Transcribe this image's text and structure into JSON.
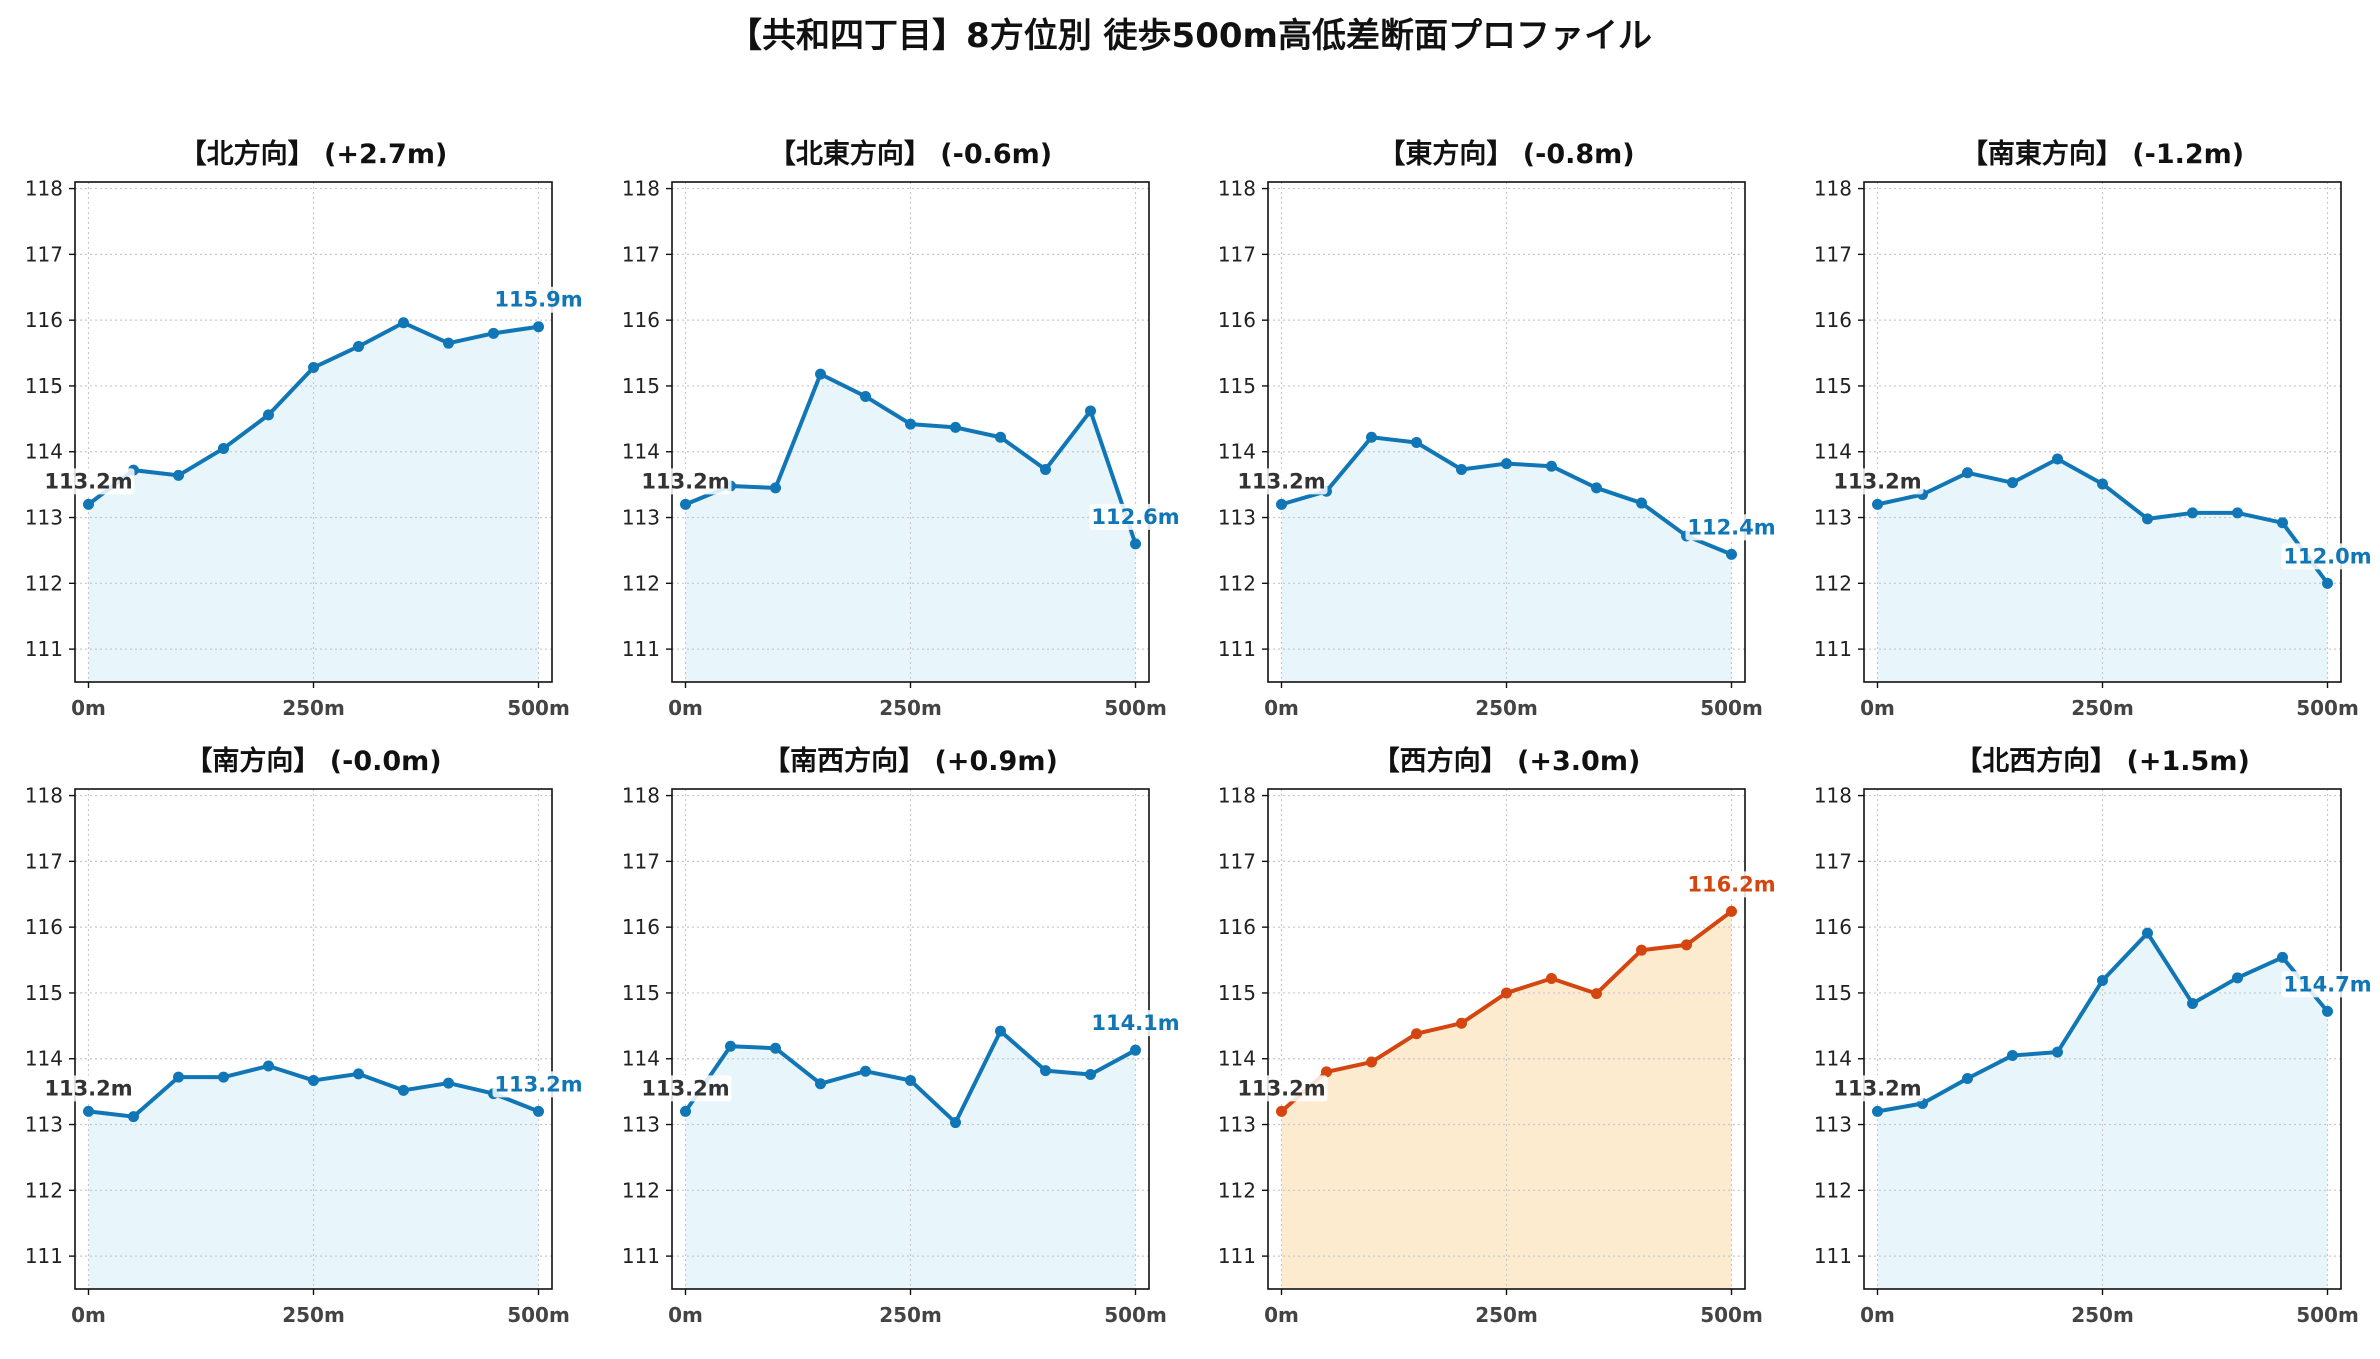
{
  "title": "【共和四丁目】8方位別 徒歩500m高低差断面プロファイル",
  "colors": {
    "normal_line": "#1176b5",
    "normal_fill": "#e8f6fb",
    "highlight_line": "#d4450f",
    "highlight_fill": "#fdebcf",
    "start_label": "#333333"
  },
  "chart_data": [
    {
      "type": "line",
      "title": "【北方向】 (+2.7m)",
      "highlight": false,
      "x": [
        0,
        50,
        100,
        150,
        200,
        250,
        300,
        350,
        400,
        450,
        500
      ],
      "y": [
        113.2,
        113.72,
        113.64,
        114.05,
        114.56,
        115.28,
        115.6,
        115.96,
        115.65,
        115.8,
        115.9
      ],
      "start_label": "113.2m",
      "end_label": "115.9m",
      "xticks": [
        "0m",
        "250m",
        "500m"
      ],
      "yticks": [
        "111",
        "112",
        "113",
        "114",
        "115",
        "116",
        "117",
        "118"
      ],
      "ylim": [
        110.5,
        118.1
      ],
      "grid": true
    },
    {
      "type": "line",
      "title": "【北東方向】 (-0.6m)",
      "highlight": false,
      "x": [
        0,
        50,
        100,
        150,
        200,
        250,
        300,
        350,
        400,
        450,
        500
      ],
      "y": [
        113.2,
        113.48,
        113.45,
        115.18,
        114.84,
        114.42,
        114.37,
        114.22,
        113.73,
        114.62,
        112.6
      ],
      "start_label": "113.2m",
      "end_label": "112.6m",
      "xticks": [
        "0m",
        "250m",
        "500m"
      ],
      "yticks": [
        "111",
        "112",
        "113",
        "114",
        "115",
        "116",
        "117",
        "118"
      ],
      "ylim": [
        110.5,
        118.1
      ],
      "grid": true
    },
    {
      "type": "line",
      "title": "【東方向】 (-0.8m)",
      "highlight": false,
      "x": [
        0,
        50,
        100,
        150,
        200,
        250,
        300,
        350,
        400,
        450,
        500
      ],
      "y": [
        113.2,
        113.4,
        114.22,
        114.14,
        113.73,
        113.82,
        113.78,
        113.45,
        113.22,
        112.72,
        112.44
      ],
      "start_label": "113.2m",
      "end_label": "112.4m",
      "xticks": [
        "0m",
        "250m",
        "500m"
      ],
      "yticks": [
        "111",
        "112",
        "113",
        "114",
        "115",
        "116",
        "117",
        "118"
      ],
      "ylim": [
        110.5,
        118.1
      ],
      "grid": true
    },
    {
      "type": "line",
      "title": "【南東方向】 (-1.2m)",
      "highlight": false,
      "x": [
        0,
        50,
        100,
        150,
        200,
        250,
        300,
        350,
        400,
        450,
        500
      ],
      "y": [
        113.2,
        113.35,
        113.68,
        113.53,
        113.89,
        113.51,
        112.98,
        113.07,
        113.07,
        112.92,
        112.0
      ],
      "start_label": "113.2m",
      "end_label": "112.0m",
      "xticks": [
        "0m",
        "250m",
        "500m"
      ],
      "yticks": [
        "111",
        "112",
        "113",
        "114",
        "115",
        "116",
        "117",
        "118"
      ],
      "ylim": [
        110.5,
        118.1
      ],
      "grid": true
    },
    {
      "type": "line",
      "title": "【南方向】 (-0.0m)",
      "highlight": false,
      "x": [
        0,
        50,
        100,
        150,
        200,
        250,
        300,
        350,
        400,
        450,
        500
      ],
      "y": [
        113.2,
        113.12,
        113.72,
        113.72,
        113.89,
        113.67,
        113.77,
        113.52,
        113.63,
        113.47,
        113.2
      ],
      "start_label": "113.2m",
      "end_label": "113.2m",
      "xticks": [
        "0m",
        "250m",
        "500m"
      ],
      "yticks": [
        "111",
        "112",
        "113",
        "114",
        "115",
        "116",
        "117",
        "118"
      ],
      "ylim": [
        110.5,
        118.1
      ],
      "grid": true
    },
    {
      "type": "line",
      "title": "【南西方向】 (+0.9m)",
      "highlight": false,
      "x": [
        0,
        50,
        100,
        150,
        200,
        250,
        300,
        350,
        400,
        450,
        500
      ],
      "y": [
        113.2,
        114.19,
        114.16,
        113.62,
        113.81,
        113.67,
        113.03,
        114.42,
        113.82,
        113.76,
        114.13
      ],
      "start_label": "113.2m",
      "end_label": "114.1m",
      "xticks": [
        "0m",
        "250m",
        "500m"
      ],
      "yticks": [
        "111",
        "112",
        "113",
        "114",
        "115",
        "116",
        "117",
        "118"
      ],
      "ylim": [
        110.5,
        118.1
      ],
      "grid": true
    },
    {
      "type": "line",
      "title": "【西方向】 (+3.0m)",
      "highlight": true,
      "x": [
        0,
        50,
        100,
        150,
        200,
        250,
        300,
        350,
        400,
        450,
        500
      ],
      "y": [
        113.2,
        113.8,
        113.95,
        114.38,
        114.54,
        115.0,
        115.22,
        114.99,
        115.65,
        115.73,
        116.24
      ],
      "start_label": "113.2m",
      "end_label": "116.2m",
      "xticks": [
        "0m",
        "250m",
        "500m"
      ],
      "yticks": [
        "111",
        "112",
        "113",
        "114",
        "115",
        "116",
        "117",
        "118"
      ],
      "ylim": [
        110.5,
        118.1
      ],
      "grid": true
    },
    {
      "type": "line",
      "title": "【北西方向】 (+1.5m)",
      "highlight": false,
      "x": [
        0,
        50,
        100,
        150,
        200,
        250,
        300,
        350,
        400,
        450,
        500
      ],
      "y": [
        113.2,
        113.32,
        113.7,
        114.05,
        114.1,
        115.19,
        115.91,
        114.84,
        115.23,
        115.54,
        114.72
      ],
      "start_label": "113.2m",
      "end_label": "114.7m",
      "xticks": [
        "0m",
        "250m",
        "500m"
      ],
      "yticks": [
        "111",
        "112",
        "113",
        "114",
        "115",
        "116",
        "117",
        "118"
      ],
      "ylim": [
        110.5,
        118.1
      ],
      "grid": true
    }
  ]
}
